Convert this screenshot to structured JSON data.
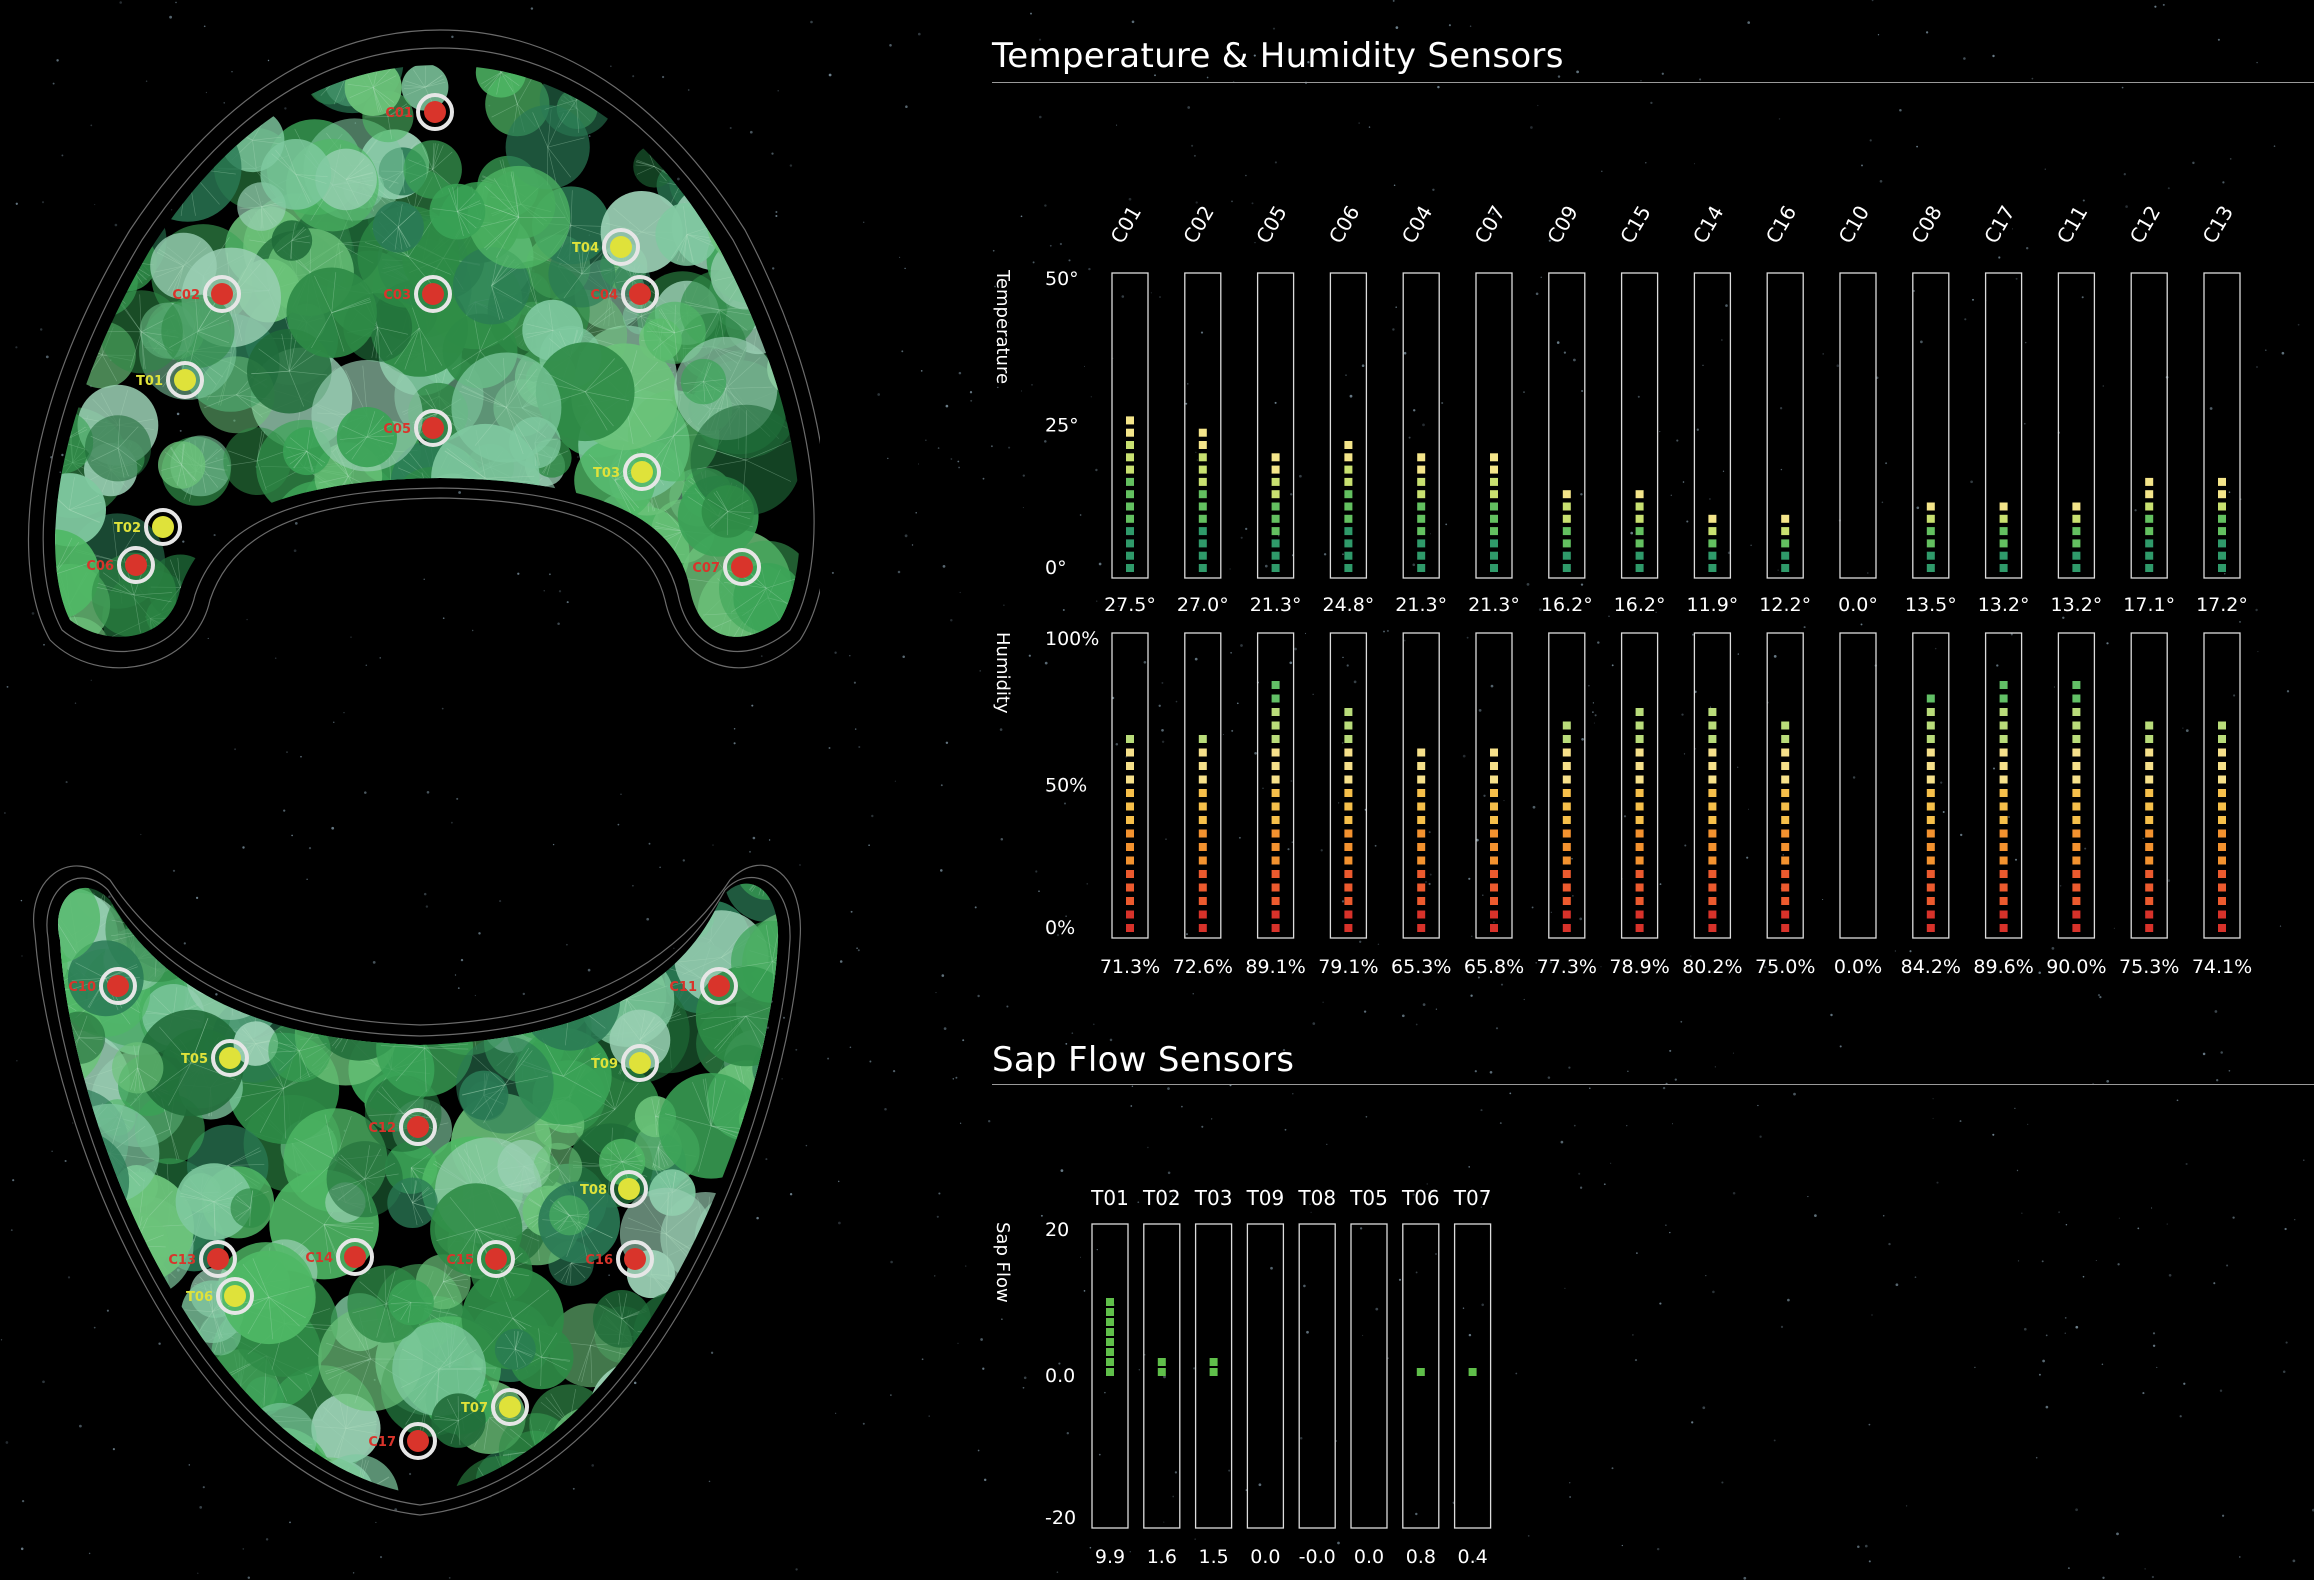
{
  "colors": {
    "background": "#000000",
    "sensor_c": "#d9342b",
    "sensor_t": "#dfe23a",
    "ring": "#e6e6e6"
  },
  "sections": {
    "temp_humidity_title": "Temperature & Humidity Sensors",
    "sap_flow_title": "Sap Flow Sensors"
  },
  "map": {
    "sensors": [
      {
        "id": "C01",
        "label": "C01",
        "type": "C"
      },
      {
        "id": "C02",
        "label": "C02",
        "type": "C"
      },
      {
        "id": "C03",
        "label": "C03",
        "type": "C"
      },
      {
        "id": "C04",
        "label": "C04",
        "type": "C"
      },
      {
        "id": "C05",
        "label": "C05",
        "type": "C"
      },
      {
        "id": "C06",
        "label": "C06",
        "type": "C"
      },
      {
        "id": "C07",
        "label": "C07",
        "type": "C"
      },
      {
        "id": "T01",
        "label": "T01",
        "type": "T"
      },
      {
        "id": "T02",
        "label": "T02",
        "type": "T"
      },
      {
        "id": "T03",
        "label": "T03",
        "type": "T"
      },
      {
        "id": "T04",
        "label": "T04",
        "type": "T"
      },
      {
        "id": "T05",
        "label": "T05",
        "type": "T"
      },
      {
        "id": "T06",
        "label": "T06",
        "type": "T"
      },
      {
        "id": "T07",
        "label": "T07",
        "type": "T"
      },
      {
        "id": "T08",
        "label": "T08",
        "type": "T"
      },
      {
        "id": "T09",
        "label": "T09",
        "type": "T"
      },
      {
        "id": "C10",
        "label": "C10",
        "type": "C"
      },
      {
        "id": "C11",
        "label": "C11",
        "type": "C"
      },
      {
        "id": "C12",
        "label": "C12",
        "type": "C"
      },
      {
        "id": "C13",
        "label": "C13",
        "type": "C"
      },
      {
        "id": "C14",
        "label": "C14",
        "type": "C"
      },
      {
        "id": "C15",
        "label": "C15",
        "type": "C"
      },
      {
        "id": "C16",
        "label": "C16",
        "type": "C"
      },
      {
        "id": "C17",
        "label": "C17",
        "type": "C"
      }
    ]
  },
  "chart_data": [
    {
      "type": "bar",
      "name": "temperature",
      "ylabel": "Temperature",
      "categories": [
        "C01",
        "C02",
        "C05",
        "C06",
        "C04",
        "C07",
        "C09",
        "C15",
        "C14",
        "C16",
        "C10",
        "C08",
        "C17",
        "C11",
        "C12",
        "C13"
      ],
      "values": [
        27.5,
        27.0,
        21.3,
        24.8,
        21.3,
        21.3,
        16.2,
        16.2,
        11.9,
        12.2,
        0.0,
        13.5,
        13.2,
        13.2,
        17.1,
        17.2
      ],
      "value_labels": [
        "27.5°",
        "27.0°",
        "21.3°",
        "24.8°",
        "21.3°",
        "21.3°",
        "16.2°",
        "16.2°",
        "11.9°",
        "12.2°",
        "0.0°",
        "13.5°",
        "13.2°",
        "13.2°",
        "17.1°",
        "17.2°"
      ],
      "yticks": [
        "50°",
        "25°",
        "0°"
      ],
      "ylim": [
        0,
        50
      ]
    },
    {
      "type": "bar",
      "name": "humidity",
      "ylabel": "Humidity",
      "categories": [
        "C01",
        "C02",
        "C05",
        "C06",
        "C04",
        "C07",
        "C09",
        "C15",
        "C14",
        "C16",
        "C10",
        "C08",
        "C17",
        "C11",
        "C12",
        "C13"
      ],
      "values": [
        71.3,
        72.6,
        89.1,
        79.1,
        65.3,
        65.8,
        77.3,
        78.9,
        80.2,
        75.0,
        0.0,
        84.2,
        89.6,
        90.0,
        75.3,
        74.1
      ],
      "value_labels": [
        "71.3%",
        "72.6%",
        "89.1%",
        "79.1%",
        "65.3%",
        "65.8%",
        "77.3%",
        "78.9%",
        "80.2%",
        "75.0%",
        "0.0%",
        "84.2%",
        "89.6%",
        "90.0%",
        "75.3%",
        "74.1%"
      ],
      "yticks": [
        "100%",
        "50%",
        "0%"
      ],
      "ylim": [
        0,
        100
      ]
    },
    {
      "type": "bar",
      "name": "sap-flow",
      "ylabel": "Sap Flow",
      "categories": [
        "T01",
        "T02",
        "T03",
        "T09",
        "T08",
        "T05",
        "T06",
        "T07"
      ],
      "values": [
        9.9,
        1.6,
        1.5,
        0.0,
        -0.0,
        0.0,
        0.8,
        0.4
      ],
      "value_labels": [
        "9.9",
        "1.6",
        "1.5",
        "0.0",
        "-0.0",
        "0.0",
        "0.8",
        "0.4"
      ],
      "yticks": [
        "20",
        "0.0",
        "-20"
      ],
      "ylim": [
        -20,
        20
      ]
    }
  ]
}
